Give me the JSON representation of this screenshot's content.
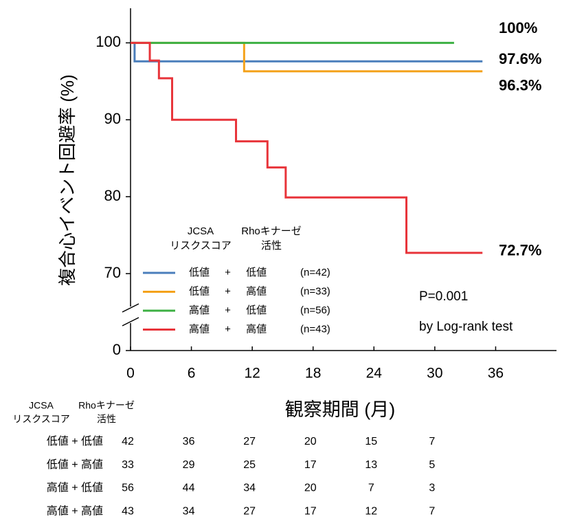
{
  "chart_data": {
    "type": "step",
    "y_label": "複合心イベント回避率 (%)",
    "x_label": "観察期間 (月)",
    "xlim": [
      0,
      42
    ],
    "xticks": [
      0,
      6,
      12,
      18,
      24,
      30,
      36
    ],
    "ylim": [
      0,
      104.5
    ],
    "y_break": [
      0,
      60
    ],
    "yticks": [
      0,
      70,
      80,
      90,
      100
    ],
    "legend_headers": [
      [
        "JCSA",
        "リスクスコア"
      ],
      [
        "Rhoキナーゼ",
        "活性"
      ]
    ],
    "series": [
      {
        "name": "低値 + 低値",
        "n_label": "(n=42)",
        "color": "#4a7ebb",
        "x": [
          0,
          0.4,
          34.7
        ],
        "values": [
          100,
          97.6,
          97.6
        ],
        "end_value": 97.6,
        "end_label": "97.6%"
      },
      {
        "name": "低値 + 高値",
        "n_label": "(n=33)",
        "color": "#f4a21b",
        "x": [
          0,
          11.2,
          34.7
        ],
        "values": [
          100,
          96.3,
          96.3
        ],
        "end_value": 96.3,
        "end_label": "96.3%"
      },
      {
        "name": "高値 + 低値",
        "n_label": "(n=56)",
        "color": "#3cb043",
        "x": [
          0,
          31.9
        ],
        "values": [
          100,
          100
        ],
        "end_value": 100,
        "end_label": "100%"
      },
      {
        "name": "高値 + 高値",
        "n_label": "(n=43)",
        "color": "#e8343a",
        "x": [
          0,
          1.9,
          2.8,
          4.1,
          10.4,
          13.5,
          15.3,
          27.2,
          34.7
        ],
        "values": [
          100,
          97.7,
          95.4,
          90,
          87.2,
          83.8,
          79.9,
          72.7,
          72.7
        ],
        "end_value": 72.7,
        "end_label": "72.7%"
      }
    ],
    "annotations": [
      "P=0.001",
      "by Log-rank test"
    ],
    "risk_table": {
      "headers": [
        [
          "JCSA",
          "リスクスコア"
        ],
        [
          "Rhoキナーゼ",
          "活性"
        ]
      ],
      "rows": [
        {
          "label": "低値 + 低値",
          "values": [
            42,
            36,
            27,
            20,
            15,
            7
          ]
        },
        {
          "label": "低値 + 高値",
          "values": [
            33,
            29,
            25,
            17,
            13,
            5
          ]
        },
        {
          "label": "高値 + 低値",
          "values": [
            56,
            44,
            34,
            20,
            7,
            3
          ]
        },
        {
          "label": "高値 + 高値",
          "values": [
            43,
            34,
            27,
            17,
            12,
            7
          ]
        }
      ]
    }
  }
}
